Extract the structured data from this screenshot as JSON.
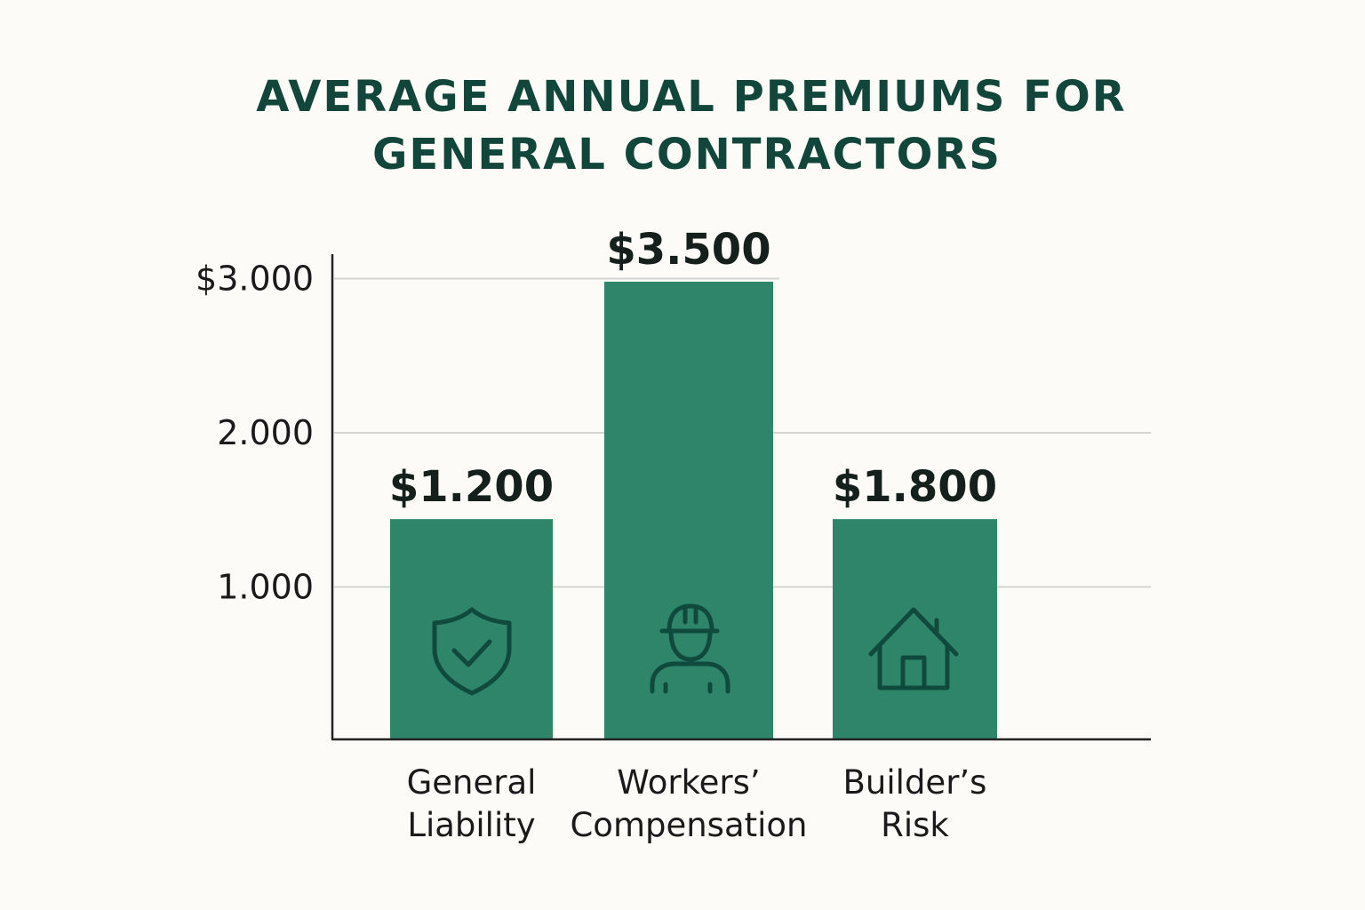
{
  "chart_data": {
    "type": "bar",
    "title": [
      "AVERAGE ANNUAL PREMIUMS FOR",
      "GENERAL CONTRACTORS"
    ],
    "categories": [
      [
        "General",
        "Liability"
      ],
      [
        "Workers’",
        "Compensation"
      ],
      [
        "Builder’s",
        "Risk"
      ]
    ],
    "values": [
      1200,
      3500,
      1800
    ],
    "value_labels": [
      "$1.200",
      "$3.500",
      "$1.800"
    ],
    "displayed_bar_heights": [
      1440,
      2980,
      1440
    ],
    "icons": [
      "shield-check-icon",
      "worker-hardhat-icon",
      "house-icon"
    ],
    "y_ticks": [
      {
        "value": 1000,
        "label": "1.000"
      },
      {
        "value": 2000,
        "label": "2.000"
      },
      {
        "value": 3000,
        "label": "$3.000"
      }
    ],
    "ylim": [
      0,
      3000
    ],
    "grid": true,
    "xlabel": "",
    "ylabel": "",
    "colors": {
      "bar": "#2f856a",
      "icon": "#0f4a3c",
      "title": "#12463a",
      "grid": "#d4d4d0",
      "axis": "#222222"
    }
  }
}
